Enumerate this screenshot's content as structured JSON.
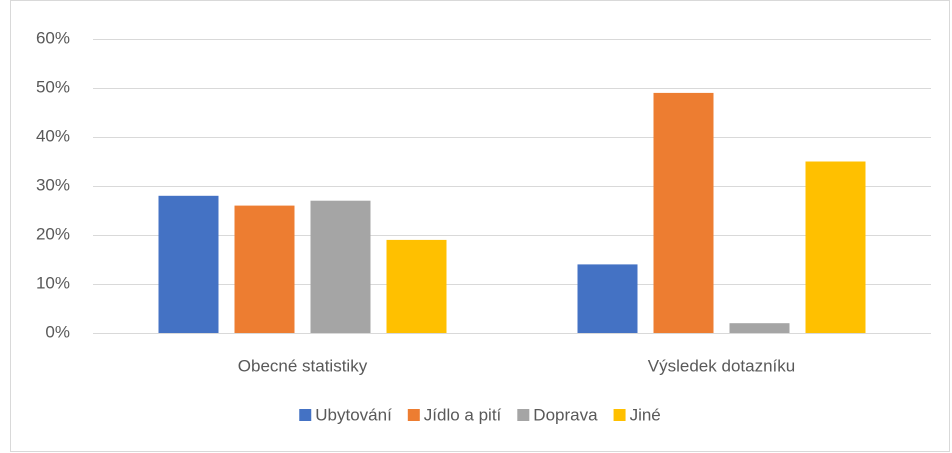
{
  "chart_data": {
    "type": "bar",
    "categories": [
      "Obecné statistiky",
      "Výsledek dotazníku"
    ],
    "series": [
      {
        "name": "Ubytování",
        "color": "#4472c4",
        "values": [
          28,
          14
        ]
      },
      {
        "name": "Jídlo a pití",
        "color": "#ed7d31",
        "values": [
          26,
          49
        ]
      },
      {
        "name": "Doprava",
        "color": "#a5a5a5",
        "values": [
          27,
          2
        ]
      },
      {
        "name": "Jiné",
        "color": "#ffc000",
        "values": [
          19,
          35
        ]
      }
    ],
    "ylim": [
      0,
      60
    ],
    "yticks": [
      {
        "value": 0,
        "label": "0%"
      },
      {
        "value": 10,
        "label": "10%"
      },
      {
        "value": 20,
        "label": "20%"
      },
      {
        "value": 30,
        "label": "30%"
      },
      {
        "value": 40,
        "label": "40%"
      },
      {
        "value": 50,
        "label": "50%"
      },
      {
        "value": 60,
        "label": "60%"
      }
    ],
    "grid": true,
    "legend": "bottom"
  }
}
